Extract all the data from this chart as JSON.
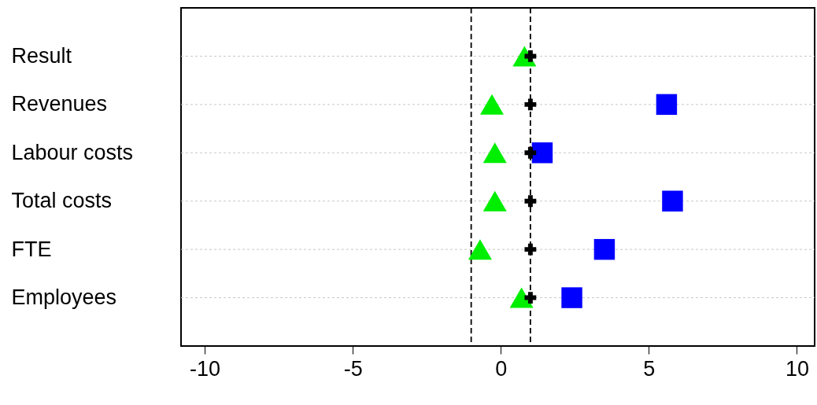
{
  "chart_data": {
    "type": "scatter",
    "orientation": "horizontal",
    "categories": [
      "Result",
      "Revenues",
      "Labour costs",
      "Total costs",
      "FTE",
      "Employees"
    ],
    "xlim": [
      -10.8,
      10.6
    ],
    "xticks": [
      -10,
      -5,
      0,
      5,
      10
    ],
    "grid": "y",
    "ref_lines": [
      {
        "axis": "x",
        "value": -1,
        "color": "#000000",
        "line_style": "dashed"
      },
      {
        "axis": "x",
        "value": 1,
        "color": "#000000",
        "line_style": "dashed"
      }
    ],
    "series": [
      {
        "color": "#0000ff",
        "marker": "square",
        "values": [
          null,
          5.6,
          1.4,
          5.8,
          3.5,
          2.4
        ]
      },
      {
        "color": "#00ee00",
        "marker": "triangle",
        "values": [
          0.8,
          -0.3,
          -0.2,
          -0.2,
          -0.7,
          0.7
        ]
      },
      {
        "color": "#000000",
        "marker": "cross",
        "values": [
          1,
          1,
          1,
          1,
          1,
          1
        ]
      }
    ]
  }
}
